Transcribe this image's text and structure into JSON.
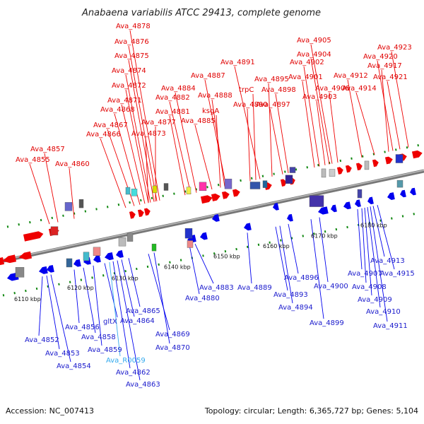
{
  "title": "Anabaena variabilis ATCC 29413, complete genome",
  "footer": {
    "accession": "Accession: NC_007413",
    "summary": "Topology: circular; Length: 6,365,727 bp; Genes: 5,104"
  },
  "colors": {
    "forward": "#ee0000",
    "reverse": "#0000ee",
    "rna": "#33aaee",
    "backbone": "#888888"
  },
  "ticks": [
    "6110 kbp",
    "6120 kbp",
    "6130 kbp",
    "6140 kbp",
    "6150 kbp",
    "6160 kbp",
    "6170 kbp",
    "6180 kbp"
  ],
  "top_labels": [
    "Ava_4857",
    "Ava_4855",
    "Ava_4860",
    "Ava_4866",
    "Ava_4867",
    "Ava_4868",
    "Ava_4871",
    "Ava_4872",
    "Ava_4874",
    "Ava_4875",
    "Ava_4876",
    "Ava_4878",
    "Ava_4873",
    "Ava_4877",
    "Ava_4881",
    "Ava_4882",
    "Ava_4884",
    "Ava_4885",
    "ksgA",
    "Ava_4888",
    "Ava_4887",
    "Ava_4890",
    "trpC",
    "Ava_4891",
    "Ava_4895",
    "Ava_4897",
    "Ava_4898",
    "Ava_4901",
    "Ava_4902",
    "Ava_4903",
    "Ava_4904",
    "Ava_4905",
    "Ava_4906",
    "Ava_4912",
    "Ava_4914",
    "Ava_4917",
    "Ava_4920",
    "Ava_4921",
    "Ava_4923"
  ],
  "bottom_labels": [
    "Ava_4852",
    "Ava_4853",
    "Ava_4854",
    "Ava_4856",
    "Ava_4858",
    "Ava_4859",
    "gltX",
    "Ava_R0059",
    "Ava_4862",
    "Ava_4863",
    "Ava_4864",
    "Ava_4865",
    "Ava_4869",
    "Ava_4870",
    "Ava_4880",
    "Ava_4883",
    "Ava_4889",
    "Ava_4893",
    "Ava_4894",
    "Ava_4896",
    "Ava_4899",
    "Ava_4900",
    "Ava_4907",
    "Ava_4908",
    "Ava_4909",
    "Ava_4910",
    "Ava_4911",
    "Ava_4913",
    "Ava_4915"
  ]
}
